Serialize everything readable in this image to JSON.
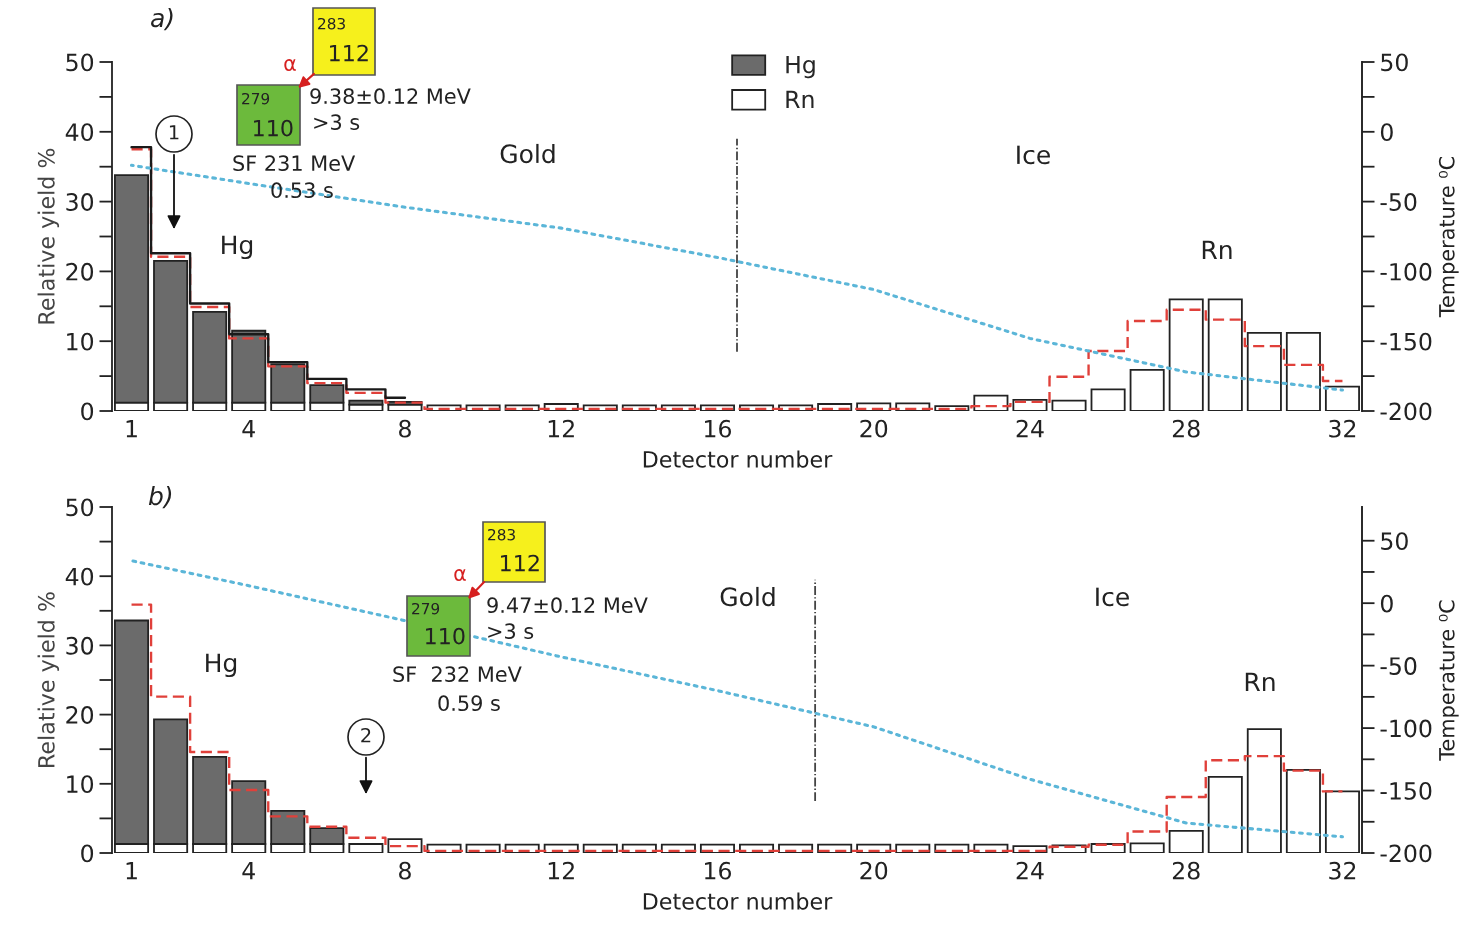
{
  "chart_data": [
    {
      "type": "bar",
      "title": "a)",
      "xlabel": "Detector number",
      "ylabel": "Relative yield %",
      "y2label": "Temperature ⁰C",
      "stacked": true,
      "legend": "top",
      "x": [
        1,
        2,
        3,
        4,
        5,
        6,
        7,
        8,
        9,
        10,
        11,
        12,
        13,
        14,
        15,
        16,
        17,
        18,
        19,
        20,
        21,
        22,
        23,
        24,
        25,
        26,
        27,
        28,
        29,
        30,
        31,
        32
      ],
      "xlim": [
        0.5,
        32.5
      ],
      "xticks": [
        1,
        4,
        8,
        12,
        16,
        20,
        24,
        28,
        32
      ],
      "ylim": [
        0,
        50
      ],
      "yticks": [
        0,
        {
          "value": 5,
          "label": null
        },
        10,
        {
          "value": 15,
          "label": null
        },
        20,
        {
          "value": 25,
          "label": null
        },
        30,
        {
          "value": 35,
          "label": null
        },
        40,
        {
          "value": 45,
          "label": null
        },
        50
      ],
      "y2lim": [
        -200,
        50
      ],
      "y2ticks": [
        -200,
        {
          "value": -175,
          "label": null
        },
        -150,
        {
          "value": -125,
          "label": null
        },
        -100,
        {
          "value": -75,
          "label": null
        },
        -50,
        {
          "value": -25,
          "label": null
        },
        0,
        {
          "value": 25,
          "label": null
        },
        50
      ],
      "series": [
        {
          "name": "Rn",
          "color": "#ffffff",
          "values": [
            1.2,
            1.2,
            1.2,
            1.2,
            1.2,
            1.2,
            0.9,
            0.9,
            0.8,
            0.8,
            0.8,
            1.0,
            0.8,
            0.8,
            0.8,
            0.8,
            0.8,
            0.8,
            1.0,
            1.1,
            1.1,
            0.7,
            2.2,
            1.6,
            1.5,
            3.1,
            5.9,
            16.0,
            16.0,
            11.2,
            11.2,
            3.5
          ]
        },
        {
          "name": "Hg",
          "color": "#6b6b6b",
          "values": [
            32.6,
            20.3,
            13.0,
            10.3,
            5.5,
            2.5,
            0.6,
            0.4,
            null,
            null,
            null,
            null,
            null,
            null,
            null,
            null,
            null,
            null,
            null,
            null,
            null,
            null,
            null,
            null,
            null,
            null,
            null,
            null,
            null,
            null,
            null,
            null
          ]
        },
        {
          "type": "step",
          "line_style": "dashed",
          "color": "#e0403a",
          "values": [
            37.5,
            22.1,
            14.9,
            10.4,
            6.4,
            4.0,
            2.6,
            1.2,
            0.3,
            0.3,
            0.3,
            0.3,
            0.3,
            0.3,
            0.3,
            0.3,
            0.3,
            0.3,
            0.3,
            0.3,
            0.3,
            0.3,
            0.7,
            1.3,
            4.9,
            8.6,
            12.9,
            14.5,
            13.1,
            9.3,
            6.6,
            4.3
          ]
        },
        {
          "type": "step",
          "line_style": "solid",
          "color": "#1a1a1a",
          "values": [
            37.8,
            22.6,
            15.4,
            11.0,
            7.0,
            4.6,
            3.1,
            1.9,
            null,
            null,
            null,
            null,
            null,
            null,
            null,
            null,
            null,
            null,
            null,
            null,
            null,
            null,
            null,
            null,
            null,
            null,
            null,
            null,
            null,
            null,
            null,
            null
          ]
        },
        {
          "type": "line",
          "axis": "y2",
          "line_style": "dotted",
          "color": "#5bb6d8",
          "x": [
            1,
            4,
            8,
            12,
            16,
            20,
            24,
            28,
            32
          ],
          "values": [
            -24,
            -37,
            -54,
            -69,
            -90,
            -113,
            -148,
            -172,
            -185
          ]
        }
      ],
      "ref_lines": [
        {
          "axis": "x",
          "value": 16.5,
          "line_style": "dashdot",
          "color": "#444444"
        }
      ],
      "annotations": [
        "283",
        "112",
        "279",
        "110",
        "α",
        "9.38±0.12 MeV",
        ">3 s",
        "SF 231 MeV",
        "0.53 s",
        "1",
        "Gold",
        "Ice",
        "Hg",
        "Rn"
      ]
    },
    {
      "type": "bar",
      "title": "b)",
      "xlabel": "Detector number",
      "ylabel": "Relative yield %",
      "y2label": "Temperature ⁰C",
      "stacked": true,
      "x": [
        1,
        2,
        3,
        4,
        5,
        6,
        7,
        8,
        9,
        10,
        11,
        12,
        13,
        14,
        15,
        16,
        17,
        18,
        19,
        20,
        21,
        22,
        23,
        24,
        25,
        26,
        27,
        28,
        29,
        30,
        31,
        32
      ],
      "xlim": [
        0.5,
        32.5
      ],
      "xticks": [
        1,
        4,
        8,
        12,
        16,
        20,
        24,
        28,
        32
      ],
      "ylim": [
        0,
        50
      ],
      "yticks": [
        0,
        {
          "value": 5,
          "label": null
        },
        10,
        {
          "value": 15,
          "label": null
        },
        20,
        {
          "value": 25,
          "label": null
        },
        30,
        {
          "value": 35,
          "label": null
        },
        40,
        {
          "value": 45,
          "label": null
        },
        50
      ],
      "y2lim": [
        -200,
        77
      ],
      "y2ticks": [
        -200,
        {
          "value": -175,
          "label": null
        },
        -150,
        {
          "value": -125,
          "label": null
        },
        -100,
        {
          "value": -75,
          "label": null
        },
        -50,
        {
          "value": -25,
          "label": null
        },
        0,
        {
          "value": 25,
          "label": null
        },
        50
      ],
      "series": [
        {
          "color": "#ffffff",
          "values": [
            1.3,
            1.3,
            1.3,
            1.3,
            1.3,
            1.3,
            1.3,
            2.0,
            1.2,
            1.2,
            1.2,
            1.2,
            1.2,
            1.2,
            1.2,
            1.2,
            1.2,
            1.2,
            1.2,
            1.2,
            1.2,
            1.2,
            1.2,
            1.0,
            1.1,
            1.3,
            1.4,
            3.2,
            11.0,
            17.9,
            12.0,
            8.9
          ]
        },
        {
          "color": "#6b6b6b",
          "values": [
            32.3,
            18.0,
            12.6,
            9.1,
            4.8,
            2.3,
            null,
            null,
            null,
            null,
            null,
            null,
            null,
            null,
            null,
            null,
            null,
            null,
            null,
            null,
            null,
            null,
            null,
            null,
            null,
            null,
            null,
            null,
            null,
            null,
            null,
            null
          ]
        },
        {
          "type": "step",
          "line_style": "dashed",
          "color": "#e0403a",
          "values": [
            35.9,
            22.6,
            14.6,
            9.1,
            5.3,
            3.8,
            2.2,
            1.0,
            0.3,
            0.3,
            0.3,
            0.3,
            0.3,
            0.3,
            0.3,
            0.3,
            0.3,
            0.3,
            0.3,
            0.3,
            0.3,
            0.3,
            0.3,
            0.3,
            0.9,
            1.2,
            3.1,
            8.1,
            13.4,
            14.0,
            11.9,
            8.9
          ]
        },
        {
          "type": "line",
          "axis": "y2",
          "line_style": "dotted",
          "color": "#5bb6d8",
          "x": [
            1,
            4,
            8,
            12,
            16,
            20,
            24,
            28,
            32
          ],
          "values": [
            34,
            14,
            -14,
            -43,
            -70,
            -99,
            -141,
            -176,
            -187
          ]
        }
      ],
      "ref_lines": [
        {
          "axis": "x",
          "value": 18.5,
          "line_style": "dashdot",
          "color": "#444444"
        }
      ],
      "annotations": [
        "283",
        "112",
        "279",
        "110",
        "α",
        "9.47±0.12 MeV",
        ">3 s",
        "SF  232 MeV",
        "0.59 s",
        "2",
        "Gold",
        "Ice",
        "Hg",
        "Rn"
      ]
    }
  ]
}
